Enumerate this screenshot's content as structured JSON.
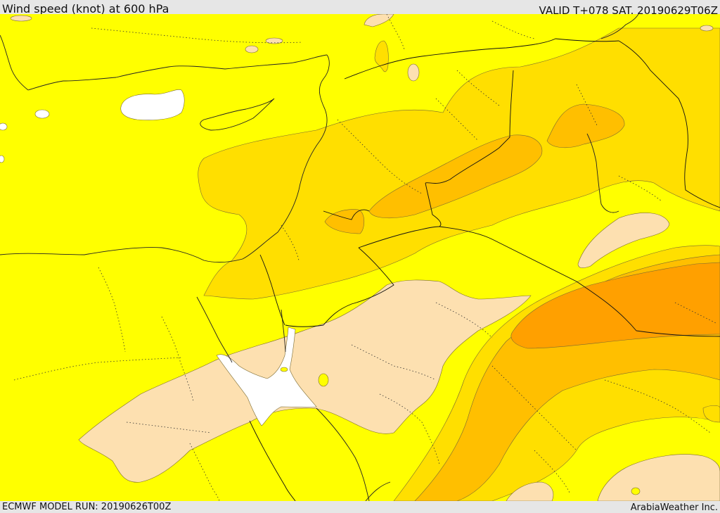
{
  "header": {
    "title": "Wind speed (knot) at 600 hPa",
    "valid_time": "VALID T+078 SAT. 20190629T06Z"
  },
  "footer": {
    "model_run": "ECMWF MODEL RUN: 20190626T00Z",
    "credit": "ArabiaWeather Inc."
  },
  "legend_colors": {
    "calm_white": "#ffffff",
    "light_tan": "#fde0b0",
    "yellow": "#ffff00",
    "gold": "#ffdf00",
    "amber": "#ffbf00",
    "orange": "#ffa000"
  }
}
